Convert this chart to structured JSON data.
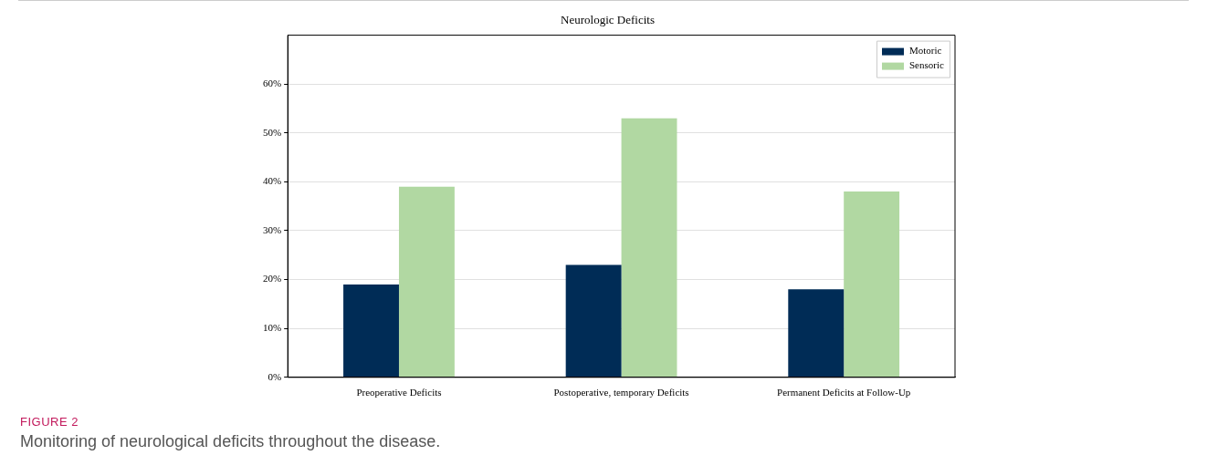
{
  "chart_data": {
    "type": "bar",
    "title": "Neurologic Deficits",
    "categories": [
      "Preoperative Deficits",
      "Postoperative, temporary Deficits",
      "Permanent Deficits at Follow-Up"
    ],
    "series": [
      {
        "name": "Motoric",
        "color": "#002c56",
        "values": [
          19,
          23,
          18
        ]
      },
      {
        "name": "Sensoric",
        "color": "#b1d8a2",
        "values": [
          39,
          53,
          38
        ]
      }
    ],
    "ylim": [
      0,
      70
    ],
    "yticks": [
      {
        "value": 0,
        "label": "0%"
      },
      {
        "value": 10,
        "label": "10%"
      },
      {
        "value": 20,
        "label": "20%"
      },
      {
        "value": 30,
        "label": "30%"
      },
      {
        "value": 40,
        "label": "40%"
      },
      {
        "value": 50,
        "label": "50%"
      },
      {
        "value": 60,
        "label": "60%"
      }
    ],
    "grid": "y",
    "legend": "top right",
    "annotations": [
      "FIGURE 2",
      "Monitoring of neurological deficits throughout the disease."
    ]
  }
}
